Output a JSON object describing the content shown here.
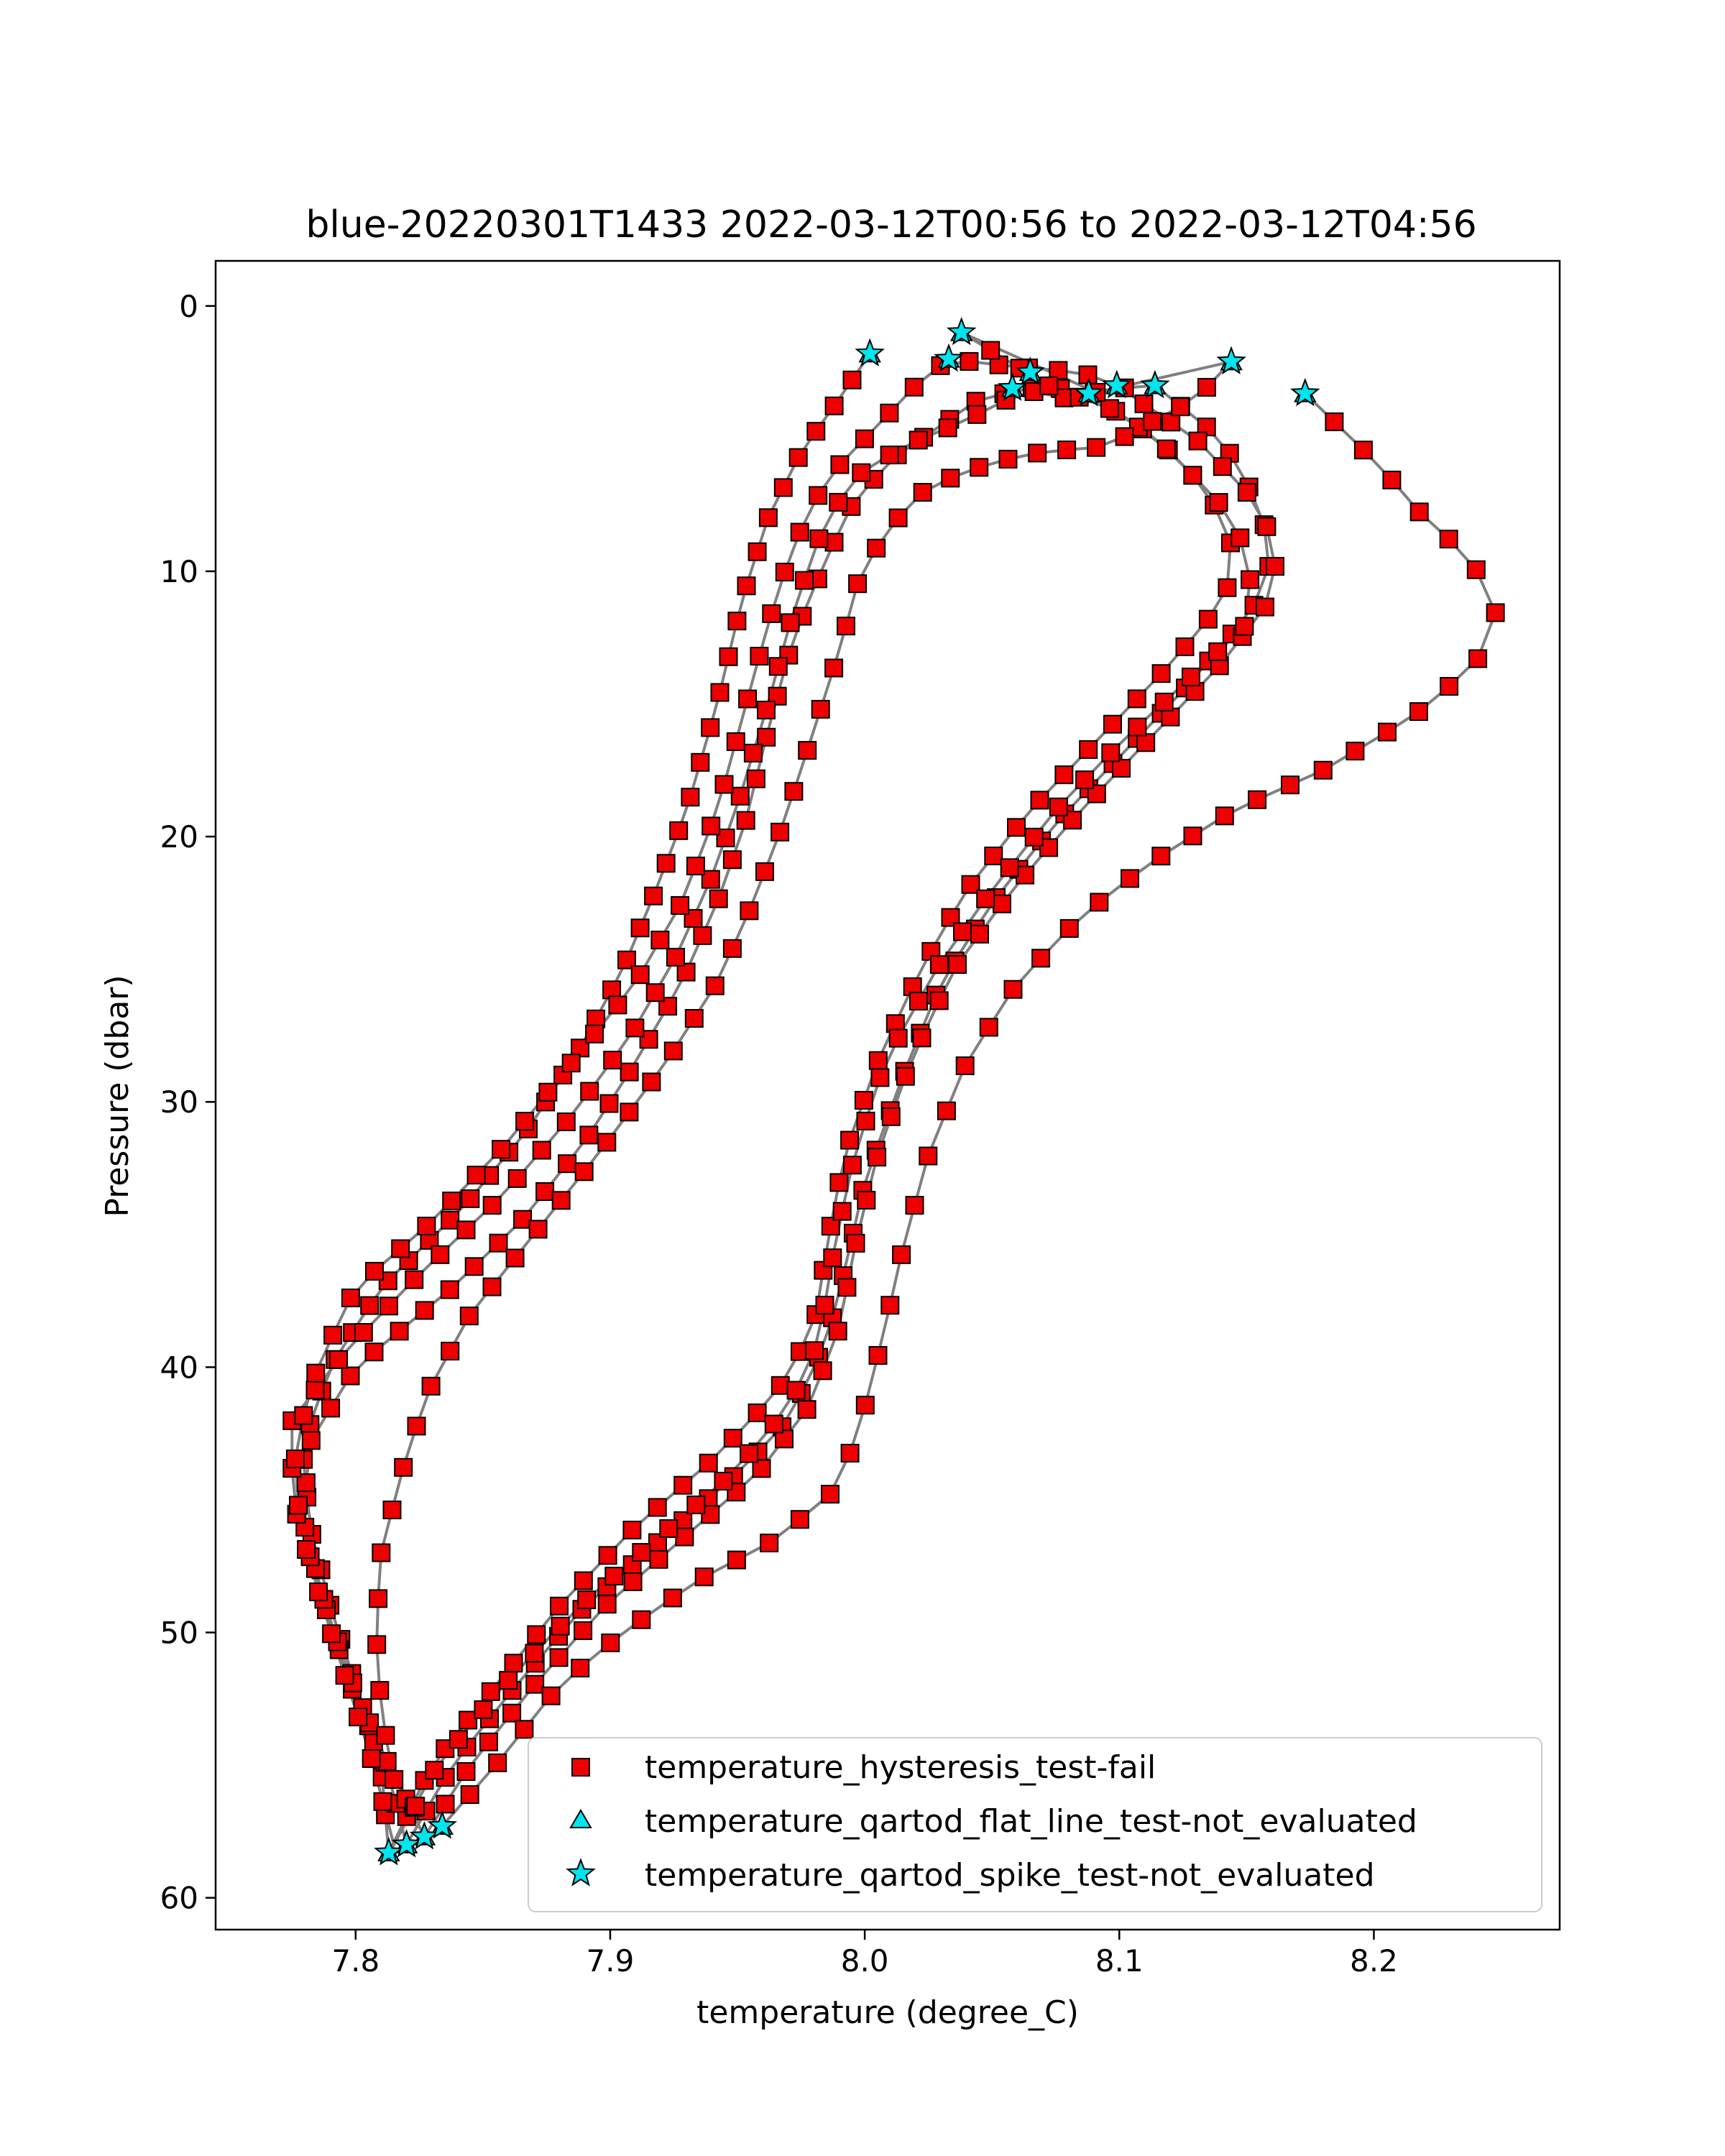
{
  "chart_data": {
    "type": "scatter",
    "title": "blue-20220301T1433 2022-03-12T00:56 to 2022-03-12T04:56",
    "xlabel": "temperature (degree_C)",
    "ylabel": "Pressure (dbar)",
    "xlim": [
      7.745,
      8.273
    ],
    "ylim": [
      61.2,
      -1.7
    ],
    "y_inverted": true,
    "xticks": [
      7.8,
      7.9,
      8.0,
      8.1,
      8.2
    ],
    "xtick_labels": [
      "7.8",
      "7.9",
      "8.0",
      "8.1",
      "8.2"
    ],
    "yticks": [
      0,
      10,
      20,
      30,
      40,
      50,
      60
    ],
    "ytick_labels": [
      "0",
      "10",
      "20",
      "30",
      "40",
      "50",
      "60"
    ],
    "grid": false,
    "legend_position": "lower-right",
    "line_color": "#808080",
    "profile_knots": [
      [
        [
          8.002,
          1.8
        ],
        [
          7.99,
          3.5
        ],
        [
          7.975,
          5.5
        ],
        [
          7.962,
          8.0
        ],
        [
          7.952,
          11.0
        ],
        [
          7.942,
          15.0
        ],
        [
          7.93,
          19.0
        ],
        [
          7.918,
          22.0
        ],
        [
          7.905,
          25.0
        ],
        [
          7.888,
          28.0
        ],
        [
          7.868,
          31.0
        ],
        [
          7.842,
          34.0
        ],
        [
          7.81,
          37.0
        ],
        [
          7.79,
          40.0
        ],
        [
          7.779,
          43.0
        ],
        [
          7.782,
          46.0
        ],
        [
          7.79,
          49.0
        ],
        [
          7.8,
          52.0
        ],
        [
          7.81,
          55.0
        ],
        [
          7.813,
          58.3
        ]
      ],
      [
        [
          7.813,
          58.3
        ],
        [
          7.83,
          55.0
        ],
        [
          7.855,
          52.0
        ],
        [
          7.88,
          49.0
        ],
        [
          7.91,
          46.0
        ],
        [
          7.94,
          43.5
        ],
        [
          7.965,
          41.0
        ],
        [
          7.98,
          38.5
        ],
        [
          7.986,
          35.0
        ],
        [
          7.992,
          32.0
        ],
        [
          8.005,
          28.5
        ],
        [
          8.022,
          25.0
        ],
        [
          8.04,
          22.0
        ],
        [
          8.065,
          19.0
        ],
        [
          8.09,
          16.5
        ],
        [
          8.12,
          13.5
        ],
        [
          8.142,
          11.0
        ],
        [
          8.144,
          9.0
        ],
        [
          8.135,
          7.0
        ],
        [
          8.115,
          5.0
        ],
        [
          8.088,
          3.3
        ]
      ],
      [
        [
          8.088,
          3.3
        ],
        [
          8.07,
          3.0
        ],
        [
          8.045,
          3.5
        ],
        [
          8.03,
          4.5
        ],
        [
          8.01,
          5.8
        ],
        [
          7.995,
          7.5
        ],
        [
          7.985,
          9.5
        ],
        [
          7.972,
          12.5
        ],
        [
          7.962,
          16.0
        ],
        [
          7.953,
          19.5
        ],
        [
          7.942,
          22.5
        ],
        [
          7.928,
          25.5
        ],
        [
          7.91,
          28.5
        ],
        [
          7.89,
          31.5
        ],
        [
          7.865,
          34.5
        ],
        [
          7.838,
          37.0
        ],
        [
          7.8,
          40.0
        ],
        [
          7.781,
          43.0
        ],
        [
          7.78,
          46.0
        ],
        [
          7.788,
          49.0
        ],
        [
          7.798,
          52.0
        ],
        [
          7.812,
          55.0
        ],
        [
          7.82,
          58.0
        ]
      ],
      [
        [
          7.82,
          58.0
        ],
        [
          7.838,
          55.0
        ],
        [
          7.863,
          52.0
        ],
        [
          7.89,
          49.0
        ],
        [
          7.92,
          46.5
        ],
        [
          7.95,
          44.0
        ],
        [
          7.97,
          42.0
        ],
        [
          7.985,
          39.0
        ],
        [
          7.993,
          36.0
        ],
        [
          8.0,
          33.0
        ],
        [
          8.015,
          29.0
        ],
        [
          8.03,
          25.5
        ],
        [
          8.05,
          22.5
        ],
        [
          8.075,
          19.5
        ],
        [
          8.1,
          17.0
        ],
        [
          8.125,
          14.5
        ],
        [
          8.152,
          11.5
        ],
        [
          8.16,
          9.5
        ],
        [
          8.155,
          7.5
        ],
        [
          8.14,
          5.0
        ],
        [
          8.114,
          3.0
        ]
      ],
      [
        [
          8.114,
          3.0
        ],
        [
          8.1,
          3.1
        ],
        [
          8.08,
          3.5
        ],
        [
          8.06,
          3.1
        ],
        [
          8.055,
          3.6
        ],
        [
          8.035,
          4.5
        ],
        [
          8.015,
          5.3
        ],
        [
          7.995,
          6.5
        ],
        [
          7.983,
          8.5
        ],
        [
          7.972,
          11.5
        ],
        [
          7.962,
          15.0
        ],
        [
          7.951,
          18.5
        ],
        [
          7.94,
          21.5
        ],
        [
          7.926,
          24.5
        ],
        [
          7.908,
          27.5
        ],
        [
          7.885,
          30.5
        ],
        [
          7.858,
          33.5
        ],
        [
          7.825,
          36.5
        ],
        [
          7.795,
          39.5
        ],
        [
          7.775,
          42.0
        ],
        [
          7.775,
          45.0
        ],
        [
          7.785,
          48.0
        ],
        [
          7.795,
          51.0
        ],
        [
          7.808,
          54.0
        ],
        [
          7.827,
          57.7
        ]
      ],
      [
        [
          7.827,
          57.7
        ],
        [
          7.845,
          55.0
        ],
        [
          7.87,
          52.0
        ],
        [
          7.898,
          49.0
        ],
        [
          7.928,
          46.5
        ],
        [
          7.958,
          44.0
        ],
        [
          7.978,
          41.5
        ],
        [
          7.99,
          38.5
        ],
        [
          7.996,
          35.5
        ],
        [
          8.005,
          32.0
        ],
        [
          8.018,
          28.5
        ],
        [
          8.035,
          25.0
        ],
        [
          8.058,
          22.0
        ],
        [
          8.085,
          19.0
        ],
        [
          8.11,
          16.5
        ],
        [
          8.14,
          13.5
        ],
        [
          8.16,
          11.0
        ],
        [
          8.162,
          9.0
        ],
        [
          8.15,
          7.0
        ],
        [
          8.13,
          5.0
        ],
        [
          8.099,
          3.0
        ]
      ],
      [
        [
          8.099,
          3.0
        ],
        [
          8.085,
          2.5
        ],
        [
          8.06,
          2.3
        ],
        [
          8.033,
          2.0
        ],
        [
          8.02,
          3.0
        ],
        [
          8.005,
          4.5
        ],
        [
          7.985,
          6.5
        ],
        [
          7.972,
          9.0
        ],
        [
          7.962,
          12.0
        ],
        [
          7.952,
          15.5
        ],
        [
          7.942,
          19.0
        ],
        [
          7.928,
          22.5
        ],
        [
          7.91,
          25.5
        ],
        [
          7.885,
          28.5
        ],
        [
          7.86,
          31.5
        ],
        [
          7.83,
          34.5
        ],
        [
          7.8,
          37.0
        ],
        [
          7.785,
          40.0
        ],
        [
          7.776,
          43.0
        ],
        [
          7.778,
          46.0
        ],
        [
          7.787,
          49.0
        ],
        [
          7.797,
          52.0
        ],
        [
          7.807,
          55.0
        ],
        [
          7.815,
          58.0
        ]
      ],
      [
        [
          7.815,
          58.0
        ],
        [
          7.832,
          55.0
        ],
        [
          7.858,
          52.0
        ],
        [
          7.888,
          49.0
        ],
        [
          7.918,
          46.5
        ],
        [
          7.948,
          44.0
        ],
        [
          7.97,
          41.5
        ],
        [
          7.982,
          39.0
        ],
        [
          7.988,
          35.5
        ],
        [
          7.996,
          32.0
        ],
        [
          8.008,
          28.5
        ],
        [
          8.028,
          25.0
        ],
        [
          8.05,
          22.0
        ],
        [
          8.075,
          19.0
        ],
        [
          8.1,
          16.5
        ],
        [
          8.128,
          14.0
        ],
        [
          8.15,
          12.0
        ],
        [
          8.152,
          9.5
        ],
        [
          8.14,
          7.5
        ],
        [
          8.12,
          5.5
        ],
        [
          8.1,
          4.0
        ],
        [
          8.072,
          3.0
        ],
        [
          8.038,
          1.0
        ]
      ],
      [
        [
          8.038,
          1.0
        ],
        [
          8.055,
          2.5
        ],
        [
          8.075,
          3.0
        ],
        [
          8.1,
          3.4
        ],
        [
          8.122,
          3.6
        ],
        [
          8.14,
          2.8
        ],
        [
          8.144,
          2.1
        ]
      ],
      [
        [
          8.144,
          2.1
        ],
        [
          8.13,
          3.5
        ],
        [
          8.11,
          4.5
        ],
        [
          8.095,
          5.3
        ],
        [
          8.07,
          5.5
        ],
        [
          8.05,
          5.9
        ],
        [
          8.025,
          6.8
        ],
        [
          8.008,
          8.5
        ],
        [
          7.997,
          10.5
        ],
        [
          7.99,
          13.0
        ],
        [
          7.98,
          16.0
        ],
        [
          7.968,
          19.5
        ],
        [
          7.956,
          22.5
        ],
        [
          7.942,
          25.5
        ],
        [
          7.922,
          28.5
        ],
        [
          7.895,
          32.0
        ],
        [
          7.87,
          35.0
        ],
        [
          7.845,
          38.0
        ],
        [
          7.828,
          41.0
        ],
        [
          7.818,
          44.0
        ],
        [
          7.81,
          47.0
        ],
        [
          7.808,
          50.0
        ],
        [
          7.81,
          53.0
        ],
        [
          7.816,
          56.0
        ],
        [
          7.834,
          57.3
        ]
      ],
      [
        [
          7.834,
          57.3
        ],
        [
          7.855,
          55.0
        ],
        [
          7.88,
          52.0
        ],
        [
          7.905,
          50.0
        ],
        [
          7.935,
          48.0
        ],
        [
          7.965,
          46.5
        ],
        [
          7.99,
          44.5
        ],
        [
          8.0,
          41.5
        ],
        [
          8.008,
          38.5
        ],
        [
          8.015,
          35.5
        ],
        [
          8.025,
          32.0
        ],
        [
          8.04,
          28.5
        ],
        [
          8.06,
          25.5
        ],
        [
          8.085,
          23.0
        ],
        [
          8.112,
          21.0
        ],
        [
          8.145,
          19.0
        ],
        [
          8.18,
          17.5
        ],
        [
          8.215,
          15.5
        ],
        [
          8.24,
          13.5
        ],
        [
          8.248,
          11.5
        ],
        [
          8.238,
          9.5
        ],
        [
          8.22,
          8.0
        ],
        [
          8.202,
          6.0
        ],
        [
          8.173,
          3.3
        ]
      ]
    ],
    "series": [
      {
        "name": "temperature_hysteresis_test-fail",
        "marker": "square",
        "color": "#ee0000",
        "edge_color": "#000000",
        "points": "all samples along every profile except the profile end-points listed in the spike series"
      },
      {
        "name": "temperature_qartod_flat_line_test-not_evaluated",
        "marker": "triangle",
        "color": "#00e5ee",
        "edge_color": "#000000",
        "points": "same positions as the spike series (profile end-points)"
      },
      {
        "name": "temperature_qartod_spike_test-not_evaluated",
        "marker": "star",
        "color": "#00e5ee",
        "edge_color": "#000000",
        "points": [
          [
            8.002,
            1.8
          ],
          [
            8.033,
            2.0
          ],
          [
            8.038,
            1.0
          ],
          [
            8.058,
            3.1
          ],
          [
            8.065,
            2.5
          ],
          [
            8.088,
            3.3
          ],
          [
            8.099,
            3.0
          ],
          [
            8.114,
            3.0
          ],
          [
            8.144,
            2.1
          ],
          [
            8.173,
            3.3
          ],
          [
            7.813,
            58.3
          ],
          [
            7.82,
            58.0
          ],
          [
            7.827,
            57.7
          ],
          [
            7.834,
            57.3
          ]
        ]
      }
    ]
  }
}
